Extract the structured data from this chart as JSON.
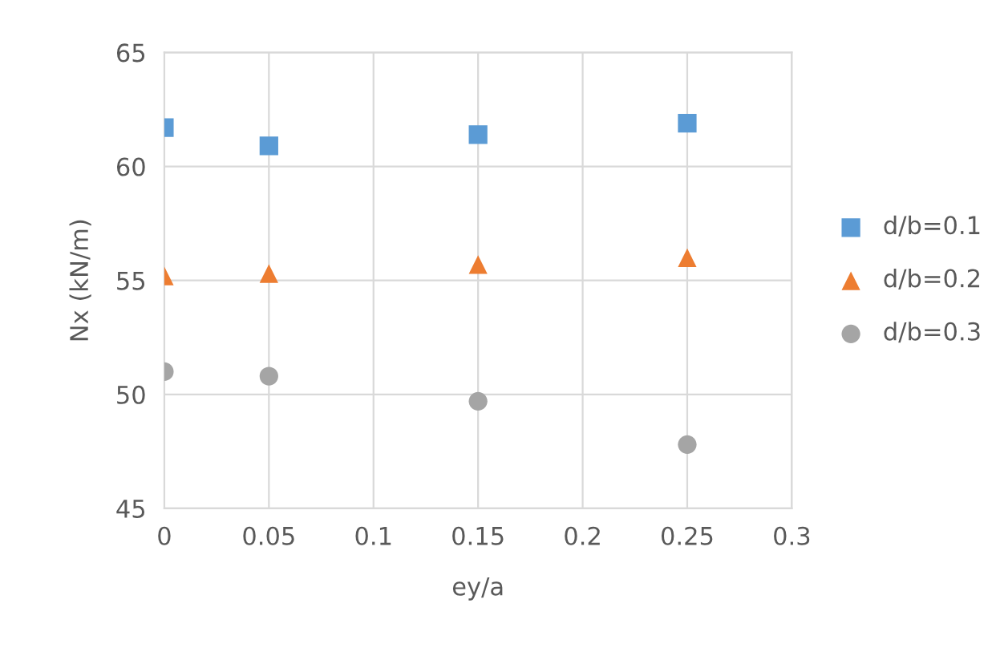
{
  "chart_data": {
    "type": "scatter",
    "xlabel": "ey/a",
    "ylabel": "Nx (kN/m)",
    "x": [
      0,
      0.05,
      0.15,
      0.25
    ],
    "xlim": [
      0,
      0.3
    ],
    "xticks": [
      0,
      0.05,
      0.1,
      0.15,
      0.2,
      0.25,
      0.3
    ],
    "ylim": [
      45,
      65
    ],
    "yticks": [
      45,
      50,
      55,
      60,
      65
    ],
    "grid": true,
    "legend": "right",
    "series": [
      {
        "name": "d/b=0.1",
        "color": "#5b9bd5",
        "marker": "square",
        "values": [
          61.7,
          60.9,
          61.4,
          61.9
        ]
      },
      {
        "name": "d/b=0.2",
        "color": "#ed7d31",
        "marker": "triangle",
        "values": [
          55.2,
          55.3,
          55.7,
          56.0
        ]
      },
      {
        "name": "d/b=0.3",
        "color": "#a5a5a5",
        "marker": "circle",
        "values": [
          51.0,
          50.8,
          49.7,
          47.8
        ]
      }
    ]
  }
}
